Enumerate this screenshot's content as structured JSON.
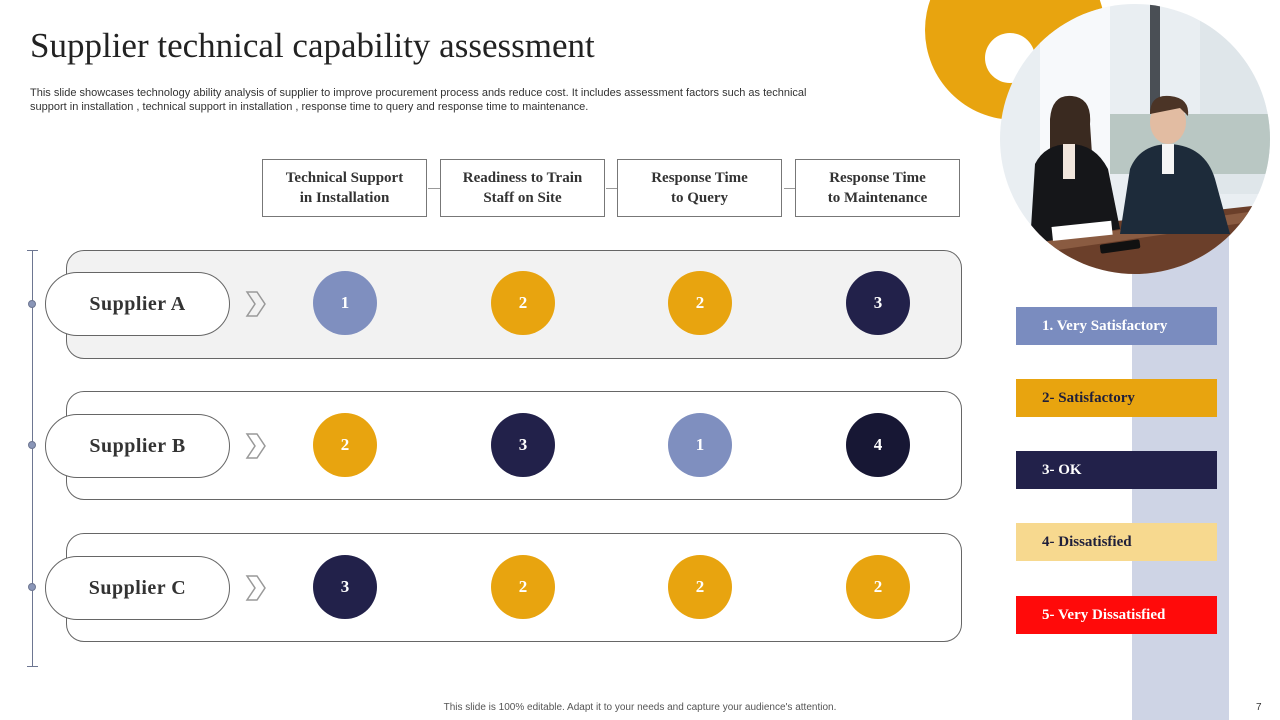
{
  "title": "Supplier technical capability assessment",
  "description": "This slide showcases technology ability analysis of supplier to improve procurement process ands reduce cost. It includes assessment factors such as technical support in installation , technical support in installation , response time to query and response time to maintenance.",
  "headers": [
    "Technical Support\nin Installation",
    "Readiness to Train\nStaff on Site",
    "Response Time\nto Query",
    "Response Time\nto Maintenance"
  ],
  "suppliers": [
    {
      "name": "Supplier  A",
      "scores": [
        "1",
        "2",
        "2",
        "3"
      ]
    },
    {
      "name": "Supplier  B",
      "scores": [
        "2",
        "3",
        "1",
        "4"
      ]
    },
    {
      "name": "Supplier  C",
      "scores": [
        "3",
        "2",
        "2",
        "2"
      ]
    }
  ],
  "legend": [
    {
      "label": "1. Very Satisfactory",
      "bg": "#7a8cbf",
      "fg": "#ffffff"
    },
    {
      "label": "2- Satisfactory",
      "bg": "#e8a40f",
      "fg": "#1f1f3a"
    },
    {
      "label": "3- OK",
      "bg": "#22214a",
      "fg": "#ffffff"
    },
    {
      "label": "4- Dissatisfied",
      "bg": "#f7d98f",
      "fg": "#1f1f3a"
    },
    {
      "label": "5- Very Dissatisfied",
      "bg": "#ff0a0a",
      "fg": "#ffffff"
    }
  ],
  "score_colors": {
    "1": "#7f8fbf",
    "2": "#e8a40f",
    "3": "#22214a",
    "4": "#171734"
  },
  "footer": "This slide is 100% editable. Adapt it to your needs and capture your audience's attention.",
  "page_number": "7"
}
